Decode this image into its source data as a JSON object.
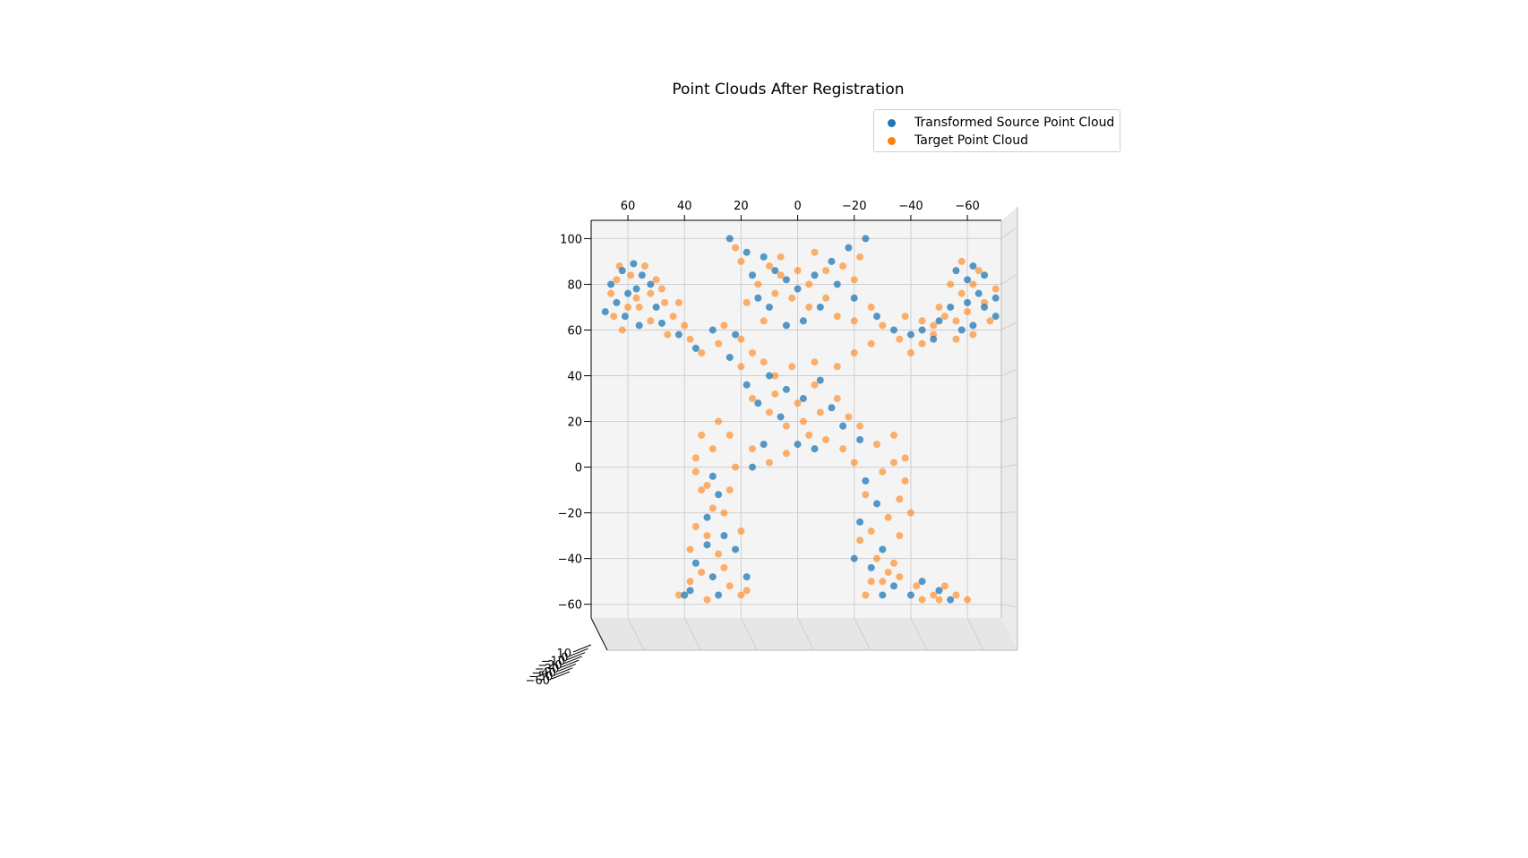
{
  "chart_data": {
    "type": "scatter",
    "title": "Point Clouds After Registration",
    "legend_position": "top-right",
    "grid": true,
    "view": "front, x-axis reversed",
    "x_ticks": [
      60,
      40,
      20,
      0,
      -20,
      -40,
      -60
    ],
    "y_ticks": [
      100,
      80,
      60,
      40,
      20,
      0,
      -20,
      -40,
      -60
    ],
    "z_ticks": [
      10,
      0,
      -10,
      -20,
      -30,
      -40,
      -50,
      -60
    ],
    "xlim": [
      73,
      -72
    ],
    "ylim": [
      -66,
      108
    ],
    "series": [
      {
        "name": "Transformed Source Point Cloud",
        "color": "#1f77b4",
        "points": [
          [
            62,
            86
          ],
          [
            58,
            89
          ],
          [
            66,
            80
          ],
          [
            55,
            84
          ],
          [
            60,
            76
          ],
          [
            64,
            72
          ],
          [
            57,
            78
          ],
          [
            52,
            80
          ],
          [
            68,
            68
          ],
          [
            61,
            66
          ],
          [
            56,
            62
          ],
          [
            50,
            70
          ],
          [
            48,
            63
          ],
          [
            42,
            58
          ],
          [
            36,
            52
          ],
          [
            30,
            60
          ],
          [
            24,
            48
          ],
          [
            18,
            36
          ],
          [
            14,
            28
          ],
          [
            22,
            58
          ],
          [
            24,
            100
          ],
          [
            18,
            94
          ],
          [
            12,
            92
          ],
          [
            8,
            86
          ],
          [
            16,
            84
          ],
          [
            4,
            82
          ],
          [
            0,
            78
          ],
          [
            -6,
            84
          ],
          [
            -12,
            90
          ],
          [
            -18,
            96
          ],
          [
            -24,
            100
          ],
          [
            -14,
            80
          ],
          [
            -8,
            70
          ],
          [
            -2,
            64
          ],
          [
            4,
            62
          ],
          [
            10,
            70
          ],
          [
            14,
            74
          ],
          [
            -20,
            74
          ],
          [
            -28,
            66
          ],
          [
            -34,
            60
          ],
          [
            -64,
            76
          ],
          [
            -60,
            82
          ],
          [
            -56,
            86
          ],
          [
            -66,
            70
          ],
          [
            -70,
            66
          ],
          [
            -62,
            62
          ],
          [
            -58,
            60
          ],
          [
            -54,
            70
          ],
          [
            -50,
            64
          ],
          [
            -48,
            56
          ],
          [
            -44,
            60
          ],
          [
            -40,
            58
          ],
          [
            -66,
            84
          ],
          [
            -60,
            72
          ],
          [
            -62,
            88
          ],
          [
            -70,
            74
          ],
          [
            10,
            40
          ],
          [
            4,
            34
          ],
          [
            -2,
            30
          ],
          [
            -8,
            38
          ],
          [
            -12,
            26
          ],
          [
            6,
            22
          ],
          [
            0,
            10
          ],
          [
            -6,
            8
          ],
          [
            12,
            10
          ],
          [
            -16,
            18
          ],
          [
            -22,
            12
          ],
          [
            16,
            0
          ],
          [
            30,
            -4
          ],
          [
            28,
            -12
          ],
          [
            32,
            -22
          ],
          [
            26,
            -30
          ],
          [
            22,
            -36
          ],
          [
            36,
            -42
          ],
          [
            30,
            -48
          ],
          [
            38,
            -54
          ],
          [
            28,
            -56
          ],
          [
            40,
            -56
          ],
          [
            18,
            -48
          ],
          [
            32,
            -34
          ],
          [
            -24,
            -6
          ],
          [
            -28,
            -16
          ],
          [
            -22,
            -24
          ],
          [
            -30,
            -36
          ],
          [
            -26,
            -44
          ],
          [
            -34,
            -52
          ],
          [
            -40,
            -56
          ],
          [
            -50,
            -54
          ],
          [
            -54,
            -58
          ],
          [
            -44,
            -50
          ],
          [
            -30,
            -56
          ],
          [
            -20,
            -40
          ]
        ]
      },
      {
        "name": "Target Point Cloud",
        "color": "#ff7f0e",
        "points": [
          [
            63,
            88
          ],
          [
            59,
            84
          ],
          [
            66,
            76
          ],
          [
            54,
            88
          ],
          [
            60,
            70
          ],
          [
            65,
            66
          ],
          [
            57,
            74
          ],
          [
            52,
            76
          ],
          [
            47,
            72
          ],
          [
            44,
            66
          ],
          [
            40,
            62
          ],
          [
            46,
            58
          ],
          [
            38,
            56
          ],
          [
            34,
            50
          ],
          [
            28,
            54
          ],
          [
            26,
            62
          ],
          [
            20,
            56
          ],
          [
            16,
            50
          ],
          [
            20,
            44
          ],
          [
            12,
            46
          ],
          [
            8,
            40
          ],
          [
            2,
            44
          ],
          [
            -6,
            46
          ],
          [
            -14,
            44
          ],
          [
            -20,
            50
          ],
          [
            -26,
            54
          ],
          [
            -30,
            62
          ],
          [
            -36,
            56
          ],
          [
            -40,
            50
          ],
          [
            -44,
            54
          ],
          [
            -48,
            62
          ],
          [
            -52,
            66
          ],
          [
            -56,
            64
          ],
          [
            -60,
            68
          ],
          [
            64,
            82
          ],
          [
            50,
            82
          ],
          [
            56,
            70
          ],
          [
            62,
            60
          ],
          [
            52,
            64
          ],
          [
            42,
            72
          ],
          [
            48,
            78
          ],
          [
            20,
            90
          ],
          [
            10,
            88
          ],
          [
            6,
            84
          ],
          [
            0,
            86
          ],
          [
            -4,
            80
          ],
          [
            -10,
            86
          ],
          [
            -16,
            88
          ],
          [
            -20,
            82
          ],
          [
            -10,
            74
          ],
          [
            -4,
            70
          ],
          [
            2,
            74
          ],
          [
            8,
            76
          ],
          [
            14,
            80
          ],
          [
            18,
            72
          ],
          [
            12,
            64
          ],
          [
            -14,
            66
          ],
          [
            -20,
            64
          ],
          [
            -26,
            70
          ],
          [
            -22,
            92
          ],
          [
            22,
            96
          ],
          [
            -6,
            94
          ],
          [
            6,
            92
          ],
          [
            -66,
            72
          ],
          [
            -58,
            76
          ],
          [
            -62,
            80
          ],
          [
            -54,
            80
          ],
          [
            -68,
            64
          ],
          [
            -62,
            58
          ],
          [
            -56,
            56
          ],
          [
            -48,
            58
          ],
          [
            -50,
            70
          ],
          [
            -44,
            64
          ],
          [
            -38,
            66
          ],
          [
            -64,
            86
          ],
          [
            -58,
            90
          ],
          [
            -70,
            78
          ],
          [
            16,
            30
          ],
          [
            10,
            24
          ],
          [
            4,
            18
          ],
          [
            -2,
            20
          ],
          [
            -8,
            24
          ],
          [
            -14,
            30
          ],
          [
            -18,
            22
          ],
          [
            -10,
            12
          ],
          [
            -4,
            14
          ],
          [
            4,
            6
          ],
          [
            10,
            2
          ],
          [
            16,
            8
          ],
          [
            -16,
            8
          ],
          [
            -20,
            2
          ],
          [
            8,
            32
          ],
          [
            0,
            28
          ],
          [
            -6,
            36
          ],
          [
            34,
            14
          ],
          [
            30,
            8
          ],
          [
            36,
            -2
          ],
          [
            34,
            -10
          ],
          [
            30,
            -18
          ],
          [
            36,
            -26
          ],
          [
            32,
            -30
          ],
          [
            28,
            -38
          ],
          [
            34,
            -46
          ],
          [
            26,
            -44
          ],
          [
            24,
            -52
          ],
          [
            38,
            -50
          ],
          [
            42,
            -56
          ],
          [
            32,
            -58
          ],
          [
            20,
            -56
          ],
          [
            26,
            -20
          ],
          [
            24,
            -10
          ],
          [
            22,
            0
          ],
          [
            28,
            20
          ],
          [
            24,
            14
          ],
          [
            20,
            -28
          ],
          [
            38,
            -36
          ],
          [
            18,
            -54
          ],
          [
            36,
            4
          ],
          [
            32,
            -8
          ],
          [
            -22,
            18
          ],
          [
            -28,
            10
          ],
          [
            -34,
            2
          ],
          [
            -38,
            -6
          ],
          [
            -36,
            -14
          ],
          [
            -32,
            -22
          ],
          [
            -36,
            -30
          ],
          [
            -28,
            -40
          ],
          [
            -34,
            -42
          ],
          [
            -26,
            -50
          ],
          [
            -36,
            -48
          ],
          [
            -42,
            -52
          ],
          [
            -48,
            -56
          ],
          [
            -52,
            -52
          ],
          [
            -56,
            -56
          ],
          [
            -60,
            -58
          ],
          [
            -44,
            -58
          ],
          [
            -24,
            -56
          ],
          [
            -30,
            -50
          ],
          [
            -22,
            -32
          ],
          [
            -24,
            -12
          ],
          [
            -30,
            -2
          ],
          [
            -38,
            4
          ],
          [
            -34,
            14
          ],
          [
            -40,
            -20
          ],
          [
            -26,
            -28
          ],
          [
            -32,
            -46
          ],
          [
            -50,
            -58
          ]
        ]
      }
    ]
  }
}
